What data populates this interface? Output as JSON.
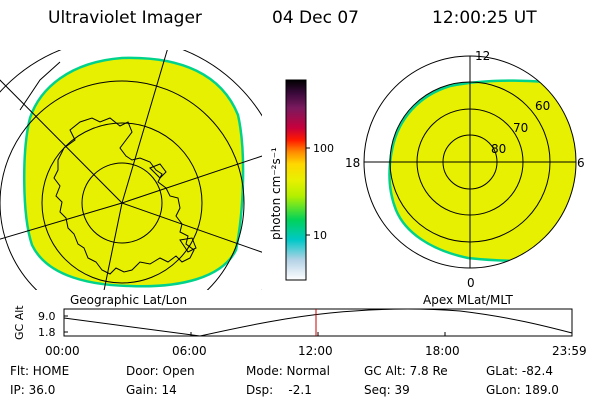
{
  "header": {
    "title": "Ultraviolet Imager",
    "date": "04 Dec 07",
    "time": "12:00:25 UT"
  },
  "left_map": {
    "label": "Geographic Lat/Lon"
  },
  "right_map": {
    "label": "Apex MLat/MLT",
    "mlt_labels": {
      "top": "12",
      "left": "18",
      "right": "6",
      "bottom": "0"
    },
    "lat_labels": [
      "60",
      "70",
      "80"
    ]
  },
  "colorbar": {
    "unit": "photon cm⁻²s⁻¹",
    "ticks": [
      "100",
      "10"
    ],
    "colors": [
      "#000000",
      "#3d0a3d",
      "#7a1a5e",
      "#c8003c",
      "#ff1a00",
      "#ff8c00",
      "#ffd700",
      "#e8f000",
      "#b4f000",
      "#00d25a",
      "#00c8c8",
      "#b4d2e6",
      "#ffffff"
    ]
  },
  "timeline": {
    "ylabel": "GC Alt",
    "y_ticks": [
      "9.0",
      "1.8"
    ],
    "x_ticks": [
      "00:00",
      "06:00",
      "12:00",
      "18:00",
      "23:59"
    ],
    "current_time": "12:00"
  },
  "status": {
    "flt": "Flt: HOME",
    "ip": "IP: 36.0",
    "door": "Door: Open",
    "gain": "Gain: 14",
    "mode": "Mode: Normal",
    "dsp": "Dsp:    -2.1",
    "gc_alt": "GC Alt: 7.8 Re",
    "seq": "Seq: 39",
    "glat": "GLat: -82.4",
    "glon": "GLon: 189.0"
  },
  "colors": {
    "image_fill": "#e6f000",
    "image_edge": "#00d28c",
    "marker": "#c80000"
  }
}
